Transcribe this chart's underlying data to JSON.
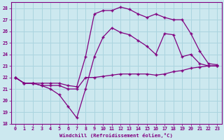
{
  "xlabel": "Windchill (Refroidissement éolien,°C)",
  "bg_color": "#cce8ef",
  "grid_color": "#aad4df",
  "line_color": "#800080",
  "xlim": [
    -0.5,
    23.5
  ],
  "ylim": [
    18,
    28.5
  ],
  "xticks": [
    0,
    1,
    2,
    3,
    4,
    5,
    6,
    7,
    8,
    9,
    10,
    11,
    12,
    13,
    14,
    15,
    16,
    17,
    18,
    19,
    20,
    21,
    22,
    23
  ],
  "yticks": [
    18,
    19,
    20,
    21,
    22,
    23,
    24,
    25,
    26,
    27,
    28
  ],
  "series": [
    {
      "x": [
        0,
        1,
        2,
        3,
        4,
        5,
        6,
        7,
        8,
        9,
        10,
        11,
        12,
        13,
        14,
        15,
        16,
        17,
        18,
        19,
        20,
        21,
        22,
        23
      ],
      "y": [
        22.0,
        21.5,
        21.5,
        21.3,
        21.3,
        21.3,
        21.0,
        21.0,
        22.0,
        22.0,
        22.1,
        22.2,
        22.3,
        22.3,
        22.3,
        22.3,
        22.2,
        22.3,
        22.5,
        22.6,
        22.8,
        22.9,
        23.0,
        23.0
      ]
    },
    {
      "x": [
        0,
        1,
        2,
        3,
        4,
        5,
        6,
        7,
        8,
        9,
        10,
        11,
        12,
        13,
        14,
        15,
        16,
        17,
        18,
        19,
        20,
        21,
        22,
        23
      ],
      "y": [
        22.0,
        21.5,
        21.5,
        21.3,
        21.0,
        20.5,
        19.5,
        18.5,
        21.0,
        23.8,
        25.5,
        26.3,
        25.9,
        25.7,
        25.2,
        24.7,
        24.0,
        25.8,
        25.7,
        23.8,
        24.0,
        23.2,
        23.0,
        23.0
      ]
    },
    {
      "x": [
        0,
        1,
        2,
        3,
        4,
        5,
        6,
        7,
        8,
        9,
        10,
        11,
        12,
        13,
        14,
        15,
        16,
        17,
        18,
        19,
        20,
        21,
        22,
        23
      ],
      "y": [
        22.0,
        21.5,
        21.5,
        21.5,
        21.5,
        21.5,
        21.3,
        21.2,
        23.8,
        27.5,
        27.8,
        27.8,
        28.1,
        27.9,
        27.5,
        27.2,
        27.5,
        27.2,
        27.0,
        27.0,
        25.8,
        24.3,
        23.2,
        23.1
      ]
    }
  ]
}
